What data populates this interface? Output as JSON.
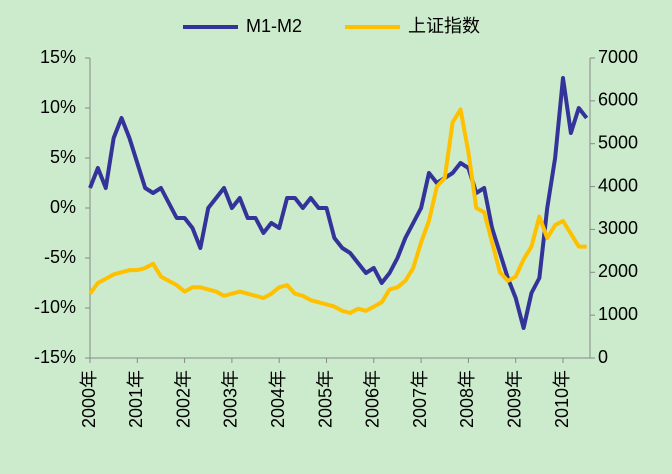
{
  "chart_data": {
    "type": "line",
    "categories": [
      "2000年",
      null,
      null,
      null,
      null,
      null,
      "2001年",
      null,
      null,
      null,
      null,
      null,
      "2002年",
      null,
      null,
      null,
      null,
      null,
      "2003年",
      null,
      null,
      null,
      null,
      null,
      "2004年",
      null,
      null,
      null,
      null,
      null,
      "2005年",
      null,
      null,
      null,
      null,
      null,
      "2006年",
      null,
      null,
      null,
      null,
      null,
      "2007年",
      null,
      null,
      null,
      null,
      null,
      "2008年",
      null,
      null,
      null,
      null,
      null,
      "2009年",
      null,
      null,
      null,
      null,
      null,
      "2010年",
      null,
      null,
      null
    ],
    "series": [
      {
        "name": "M1-M2",
        "color": "#333399",
        "values": [
          2,
          4,
          2,
          7,
          9,
          7,
          4.5,
          2,
          1.5,
          2,
          0.5,
          -1,
          -1,
          -2,
          -4,
          0,
          1,
          2,
          0,
          1,
          -1,
          -1,
          -2.5,
          -1.5,
          -2,
          1,
          1,
          0,
          1,
          0,
          0,
          -3,
          -4,
          -4.5,
          -5.5,
          -6.5,
          -6,
          -7.5,
          -6.5,
          -5,
          -3,
          -1.5,
          0,
          3.5,
          2.5,
          3,
          3.5,
          4.5,
          4,
          1.5,
          2,
          -2,
          -4.5,
          -7,
          -9,
          -12,
          -8.5,
          -7,
          0,
          5,
          13,
          7.5,
          10,
          9
        ]
      },
      {
        "name": "上证指数",
        "color": "#ffc000",
        "axis": "y2",
        "values": [
          1500,
          1750,
          1850,
          1950,
          2000,
          2050,
          2050,
          2100,
          2200,
          1900,
          1800,
          1700,
          1550,
          1650,
          1650,
          1600,
          1550,
          1450,
          1500,
          1550,
          1500,
          1450,
          1400,
          1500,
          1650,
          1700,
          1500,
          1450,
          1350,
          1300,
          1250,
          1200,
          1100,
          1050,
          1150,
          1100,
          1200,
          1300,
          1600,
          1650,
          1800,
          2100,
          2700,
          3200,
          4000,
          4200,
          5500,
          5800,
          4800,
          3500,
          3400,
          2700,
          2000,
          1800,
          1900,
          2300,
          2600,
          3300,
          2800,
          3100,
          3200,
          2900,
          2600,
          2600
        ]
      }
    ],
    "ylim": [
      -15,
      15
    ],
    "yticks": [
      {
        "value": -15,
        "label": "-15%"
      },
      {
        "value": -10,
        "label": "-10%"
      },
      {
        "value": -5,
        "label": "-5%"
      },
      {
        "value": 0,
        "label": "0%"
      },
      {
        "value": 5,
        "label": "5%"
      },
      {
        "value": 10,
        "label": "10%"
      },
      {
        "value": 15,
        "label": "15%"
      }
    ],
    "y2lim": [
      0,
      7000
    ],
    "y2ticks": [
      0,
      1000,
      2000,
      3000,
      4000,
      5000,
      6000,
      7000
    ],
    "legend": "top"
  }
}
